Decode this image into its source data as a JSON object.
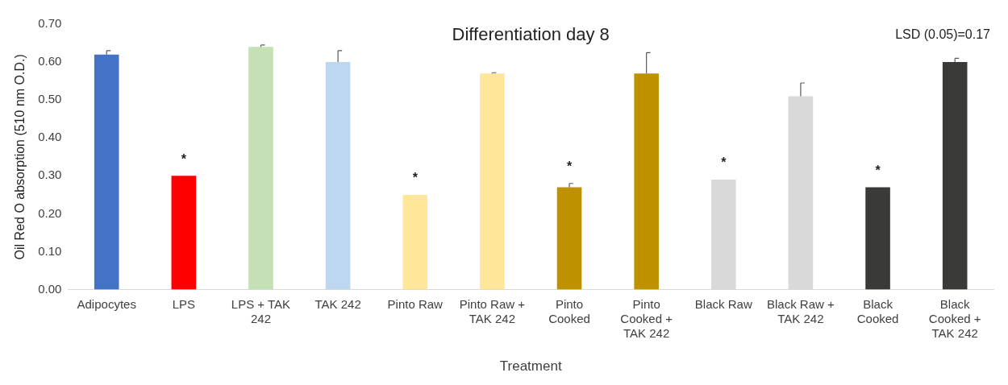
{
  "chart_data": {
    "type": "bar",
    "title": "Differentiation day 8",
    "xlabel": "Treatment",
    "ylabel": "Oil Red O absorption (510 nm O.D.)",
    "categories": [
      "Adipocytes",
      "LPS",
      "LPS + TAK 242",
      "TAK 242",
      "Pinto Raw",
      "Pinto Raw + TAK 242",
      "Pinto Cooked",
      "Pinto Cooked + TAK 242",
      "Black Raw",
      "Black Raw + TAK 242",
      "Black Cooked",
      "Black Cooked + TAK 242"
    ],
    "values": [
      0.62,
      0.3,
      0.64,
      0.6,
      0.25,
      0.57,
      0.27,
      0.57,
      0.29,
      0.51,
      0.27,
      0.6
    ],
    "colors": [
      "#4472c4",
      "#ff0000",
      "#c5e0b4",
      "#bdd7ee",
      "#ffe699",
      "#ffe699",
      "#bf9000",
      "#bf9000",
      "#d9d9d9",
      "#d9d9d9",
      "#3a3a38",
      "#3a3a38"
    ],
    "errors": [
      0.01,
      null,
      0.005,
      0.03,
      null,
      0.002,
      0.01,
      0.055,
      null,
      0.035,
      null,
      0.01
    ],
    "ylim": [
      0,
      0.7
    ],
    "yticks": [
      {
        "value": 0,
        "label": "0.00"
      },
      {
        "value": 0.1,
        "label": "0.10"
      },
      {
        "value": 0.2,
        "label": "0.20"
      },
      {
        "value": 0.3,
        "label": "0.30"
      },
      {
        "value": 0.4,
        "label": "0.40"
      },
      {
        "value": 0.5,
        "label": "0.50"
      },
      {
        "value": 0.6,
        "label": "0.60"
      },
      {
        "value": 0.7,
        "label": "0.70"
      }
    ],
    "grid": false,
    "legend": false,
    "annotations": [
      "LSD (0.05)=0.17",
      {
        "text": "*",
        "x": "LPS",
        "y": 0.3
      },
      {
        "text": "*",
        "x": "Pinto Raw",
        "y": 0.25
      },
      {
        "text": "*",
        "x": "Pinto Cooked",
        "y": 0.27
      },
      {
        "text": "*",
        "x": "Black Raw",
        "y": 0.29
      },
      {
        "text": "*",
        "x": "Black Cooked",
        "y": 0.27
      }
    ]
  }
}
